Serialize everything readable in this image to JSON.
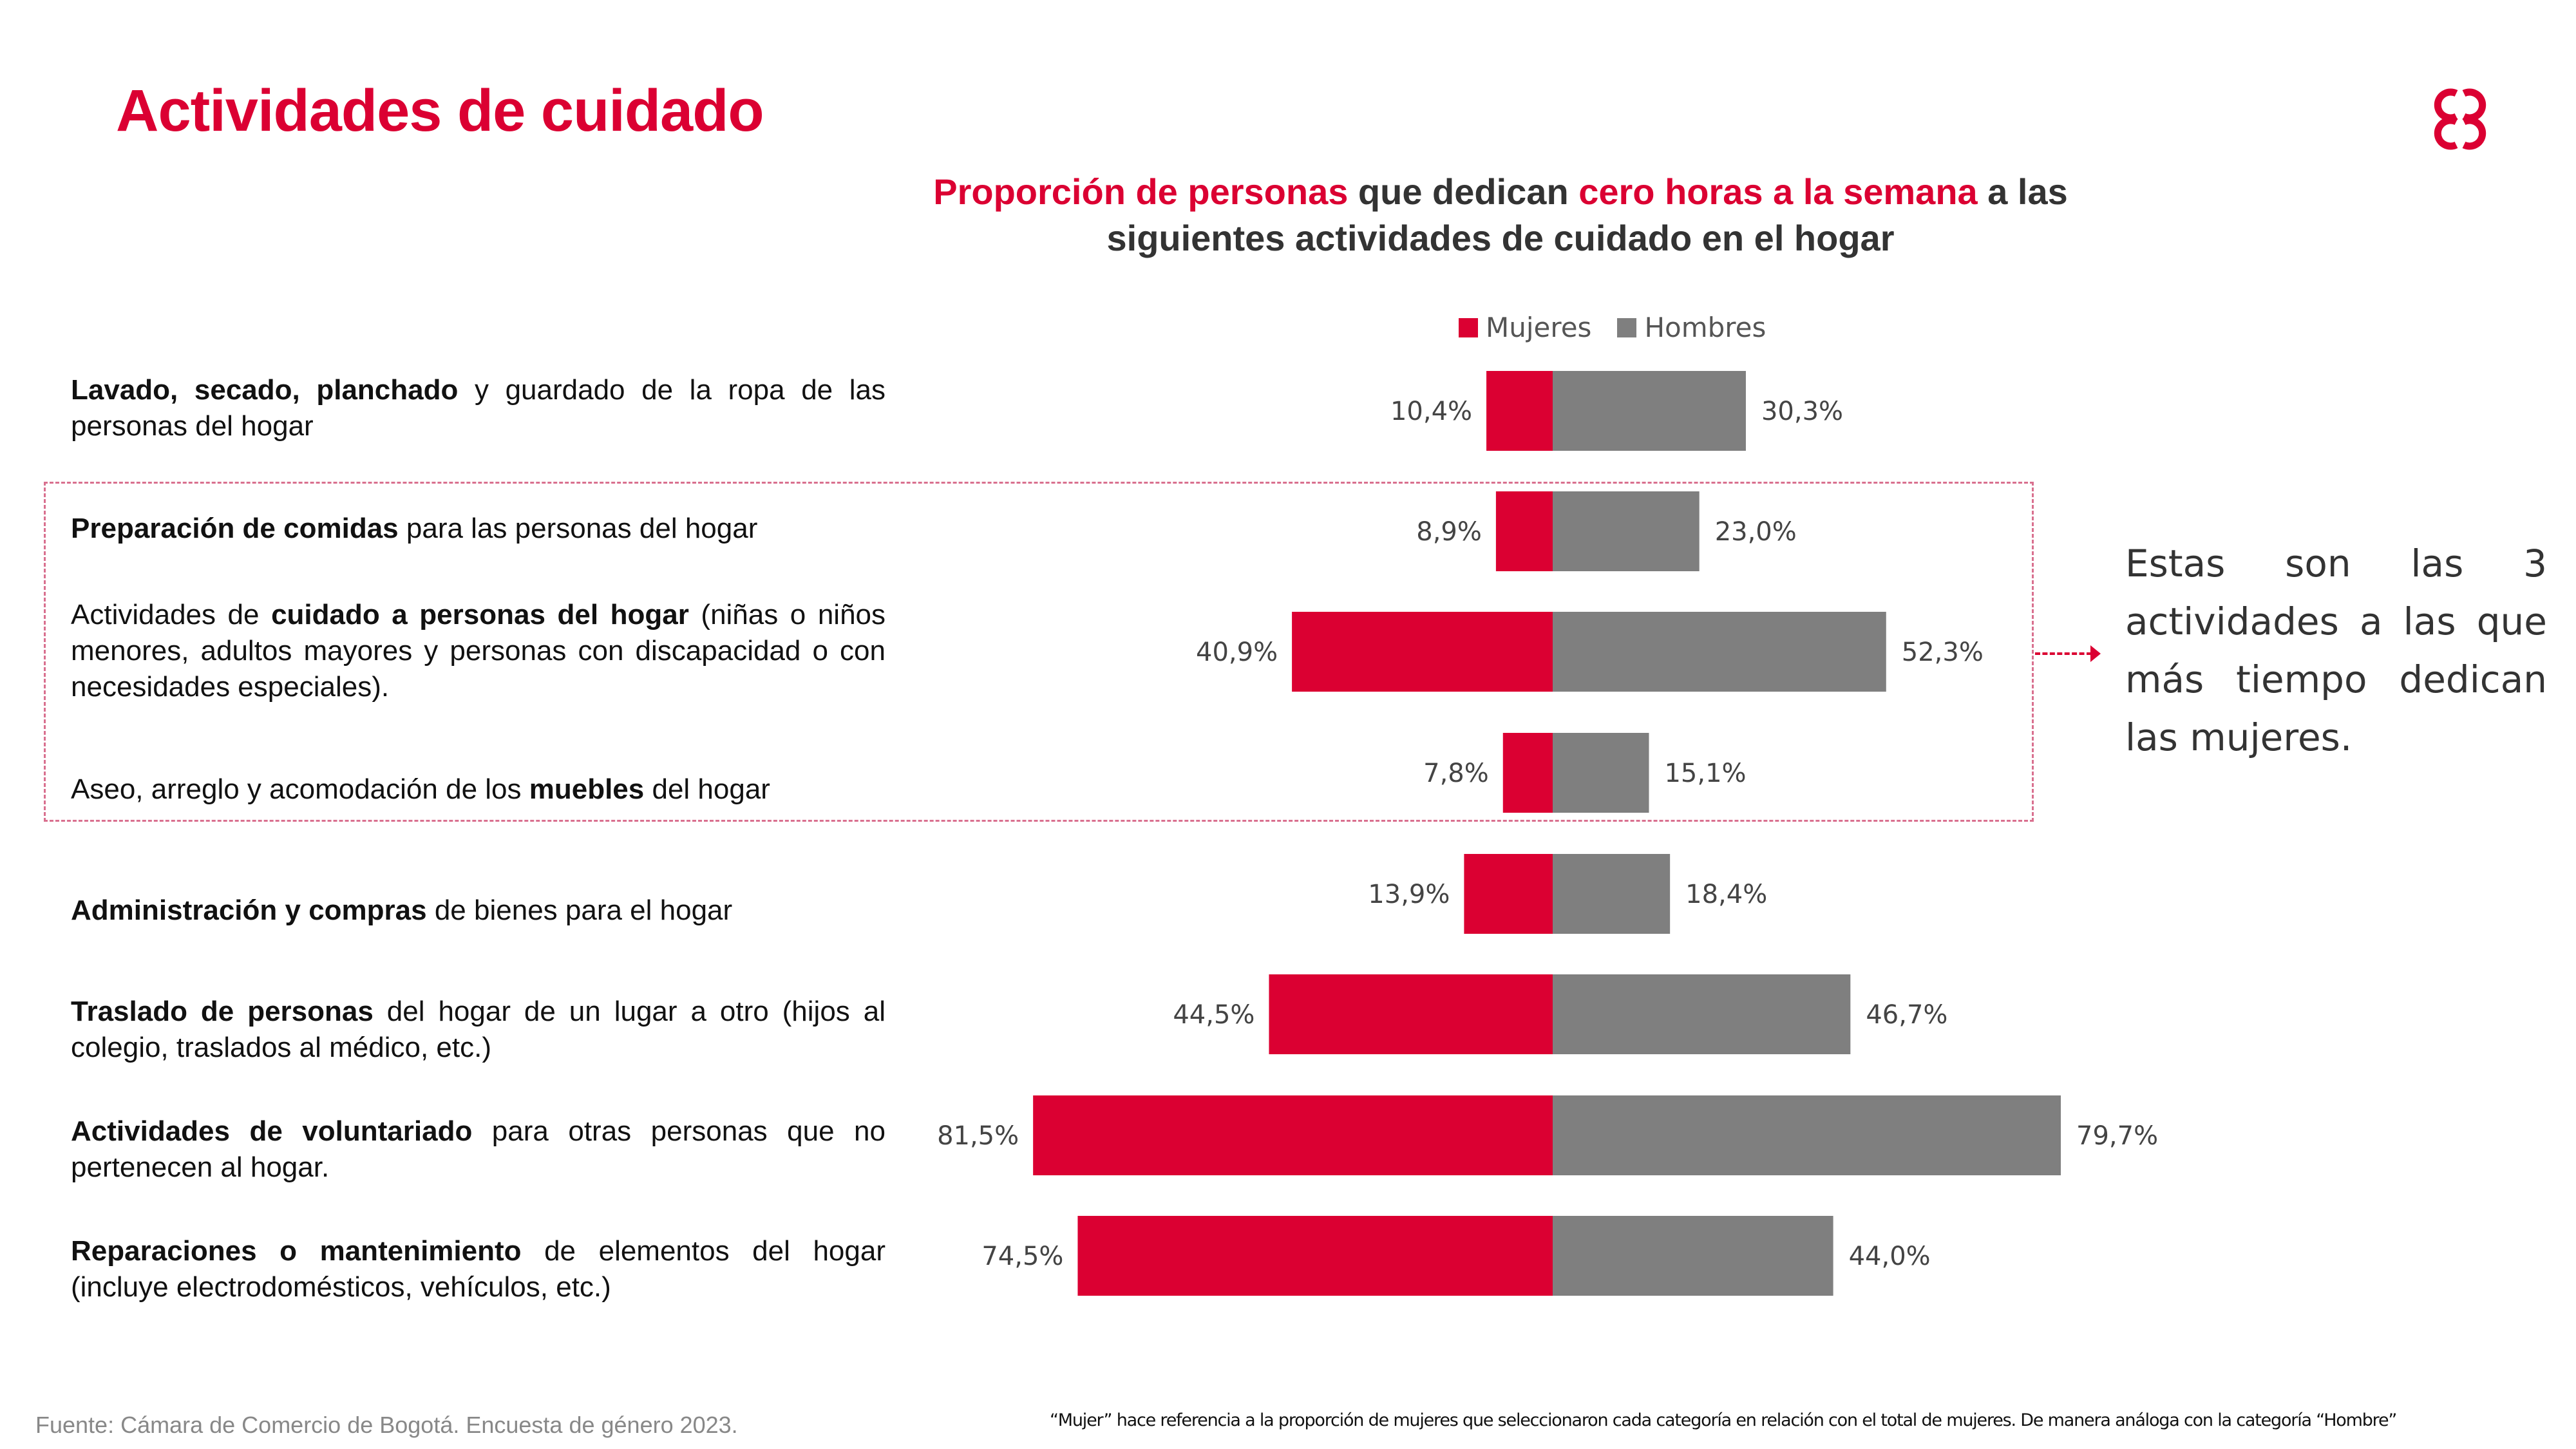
{
  "slide": {
    "title": "Actividades de cuidado",
    "logo": "ccb-logo-icon",
    "source": "Fuente: Cámara de Comercio de Bogotá. Encuesta de género 2023.",
    "footnote": "“Mujer” hace referencia a la proporción de mujeres que seleccionaron cada categoría en relación con el total de mujeres. De manera análoga con la categoría “Hombre”",
    "annotation": "Estas son las 3 actividades a las que más tiempo dedican las mujeres.",
    "colors": {
      "accent": "#db0032",
      "men": "#7f7f7f",
      "text": "#333333"
    }
  },
  "subtitle": {
    "part1": "Proporción de personas",
    "part2": " que dedican ",
    "part3": "cero horas a la semana",
    "part4": " a las siguientes actividades de cuidado en el hogar"
  },
  "categories": [
    {
      "bold": "Lavado, secado, planchado",
      "rest": " y guardado de la ropa de las personas del hogar",
      "bold_first": true
    },
    {
      "bold": "Preparación de comidas",
      "rest": " para las personas del hogar",
      "bold_first": true
    },
    {
      "pre": "Actividades de ",
      "bold": "cuidado a personas del hogar",
      "rest": " (niñas o niños menores, adultos mayores y personas con discapacidad o con necesidades especiales).",
      "bold_first": false
    },
    {
      "pre": "Aseo, arreglo y acomodación de los ",
      "bold": "muebles",
      "rest": " del hogar",
      "bold_first": false
    },
    {
      "bold": "Administración y compras",
      "rest": " de bienes para el hogar",
      "bold_first": true
    },
    {
      "bold": "Traslado de personas",
      "rest": " del hogar de un lugar a otro (hijos al colegio, traslados al médico, etc.)",
      "bold_first": true
    },
    {
      "bold": "Actividades de voluntariado",
      "rest": " para otras personas que no pertenecen al hogar.",
      "bold_first": true
    },
    {
      "bold": "Reparaciones o mantenimiento",
      "rest": " de elementos del hogar (incluye electrodomésticos, vehículos, etc.)",
      "bold_first": true
    }
  ],
  "chart_data": {
    "type": "bar",
    "orientation": "horizontal-diverging",
    "title": "Proporción de personas que dedican cero horas a la semana a las siguientes actividades de cuidado en el hogar",
    "categories": [
      "Lavado, secado, planchado y guardado de la ropa de las personas del hogar",
      "Preparación de comidas para las personas del hogar",
      "Actividades de cuidado a personas del hogar (niñas o niños menores, adultos mayores y personas con discapacidad o con necesidades especiales).",
      "Aseo, arreglo y acomodación de los muebles del hogar",
      "Administración y compras de bienes para el hogar",
      "Traslado de personas del hogar de un lugar a otro (hijos al colegio, traslados al médico, etc.)",
      "Actividades de voluntariado para otras personas que no pertenecen al hogar.",
      "Reparaciones o mantenimiento de elementos del hogar (incluye electrodomésticos, vehículos, etc.)"
    ],
    "series": [
      {
        "name": "Mujeres",
        "color": "#db0032",
        "side": "left",
        "values": [
          10.4,
          8.9,
          40.9,
          7.8,
          13.9,
          44.5,
          81.5,
          74.5
        ],
        "labels": [
          "10,4%",
          "8,9%",
          "40,9%",
          "7,8%",
          "13,9%",
          "44,5%",
          "81,5%",
          "74,5%"
        ]
      },
      {
        "name": "Hombres",
        "color": "#7f7f7f",
        "side": "right",
        "values": [
          30.3,
          23.0,
          52.3,
          15.1,
          18.4,
          46.7,
          79.7,
          44.0
        ],
        "labels": [
          "30,3%",
          "23,0%",
          "52,3%",
          "15,1%",
          "18,4%",
          "46,7%",
          "79,7%",
          "44,0%"
        ]
      }
    ],
    "unit": "%",
    "xlabel": "",
    "ylabel": "",
    "grid": false,
    "axis_visible": false,
    "legend": {
      "position": "top-center",
      "entries": [
        "Mujeres",
        "Hombres"
      ]
    },
    "highlighted_categories": [
      1,
      2,
      3
    ]
  }
}
